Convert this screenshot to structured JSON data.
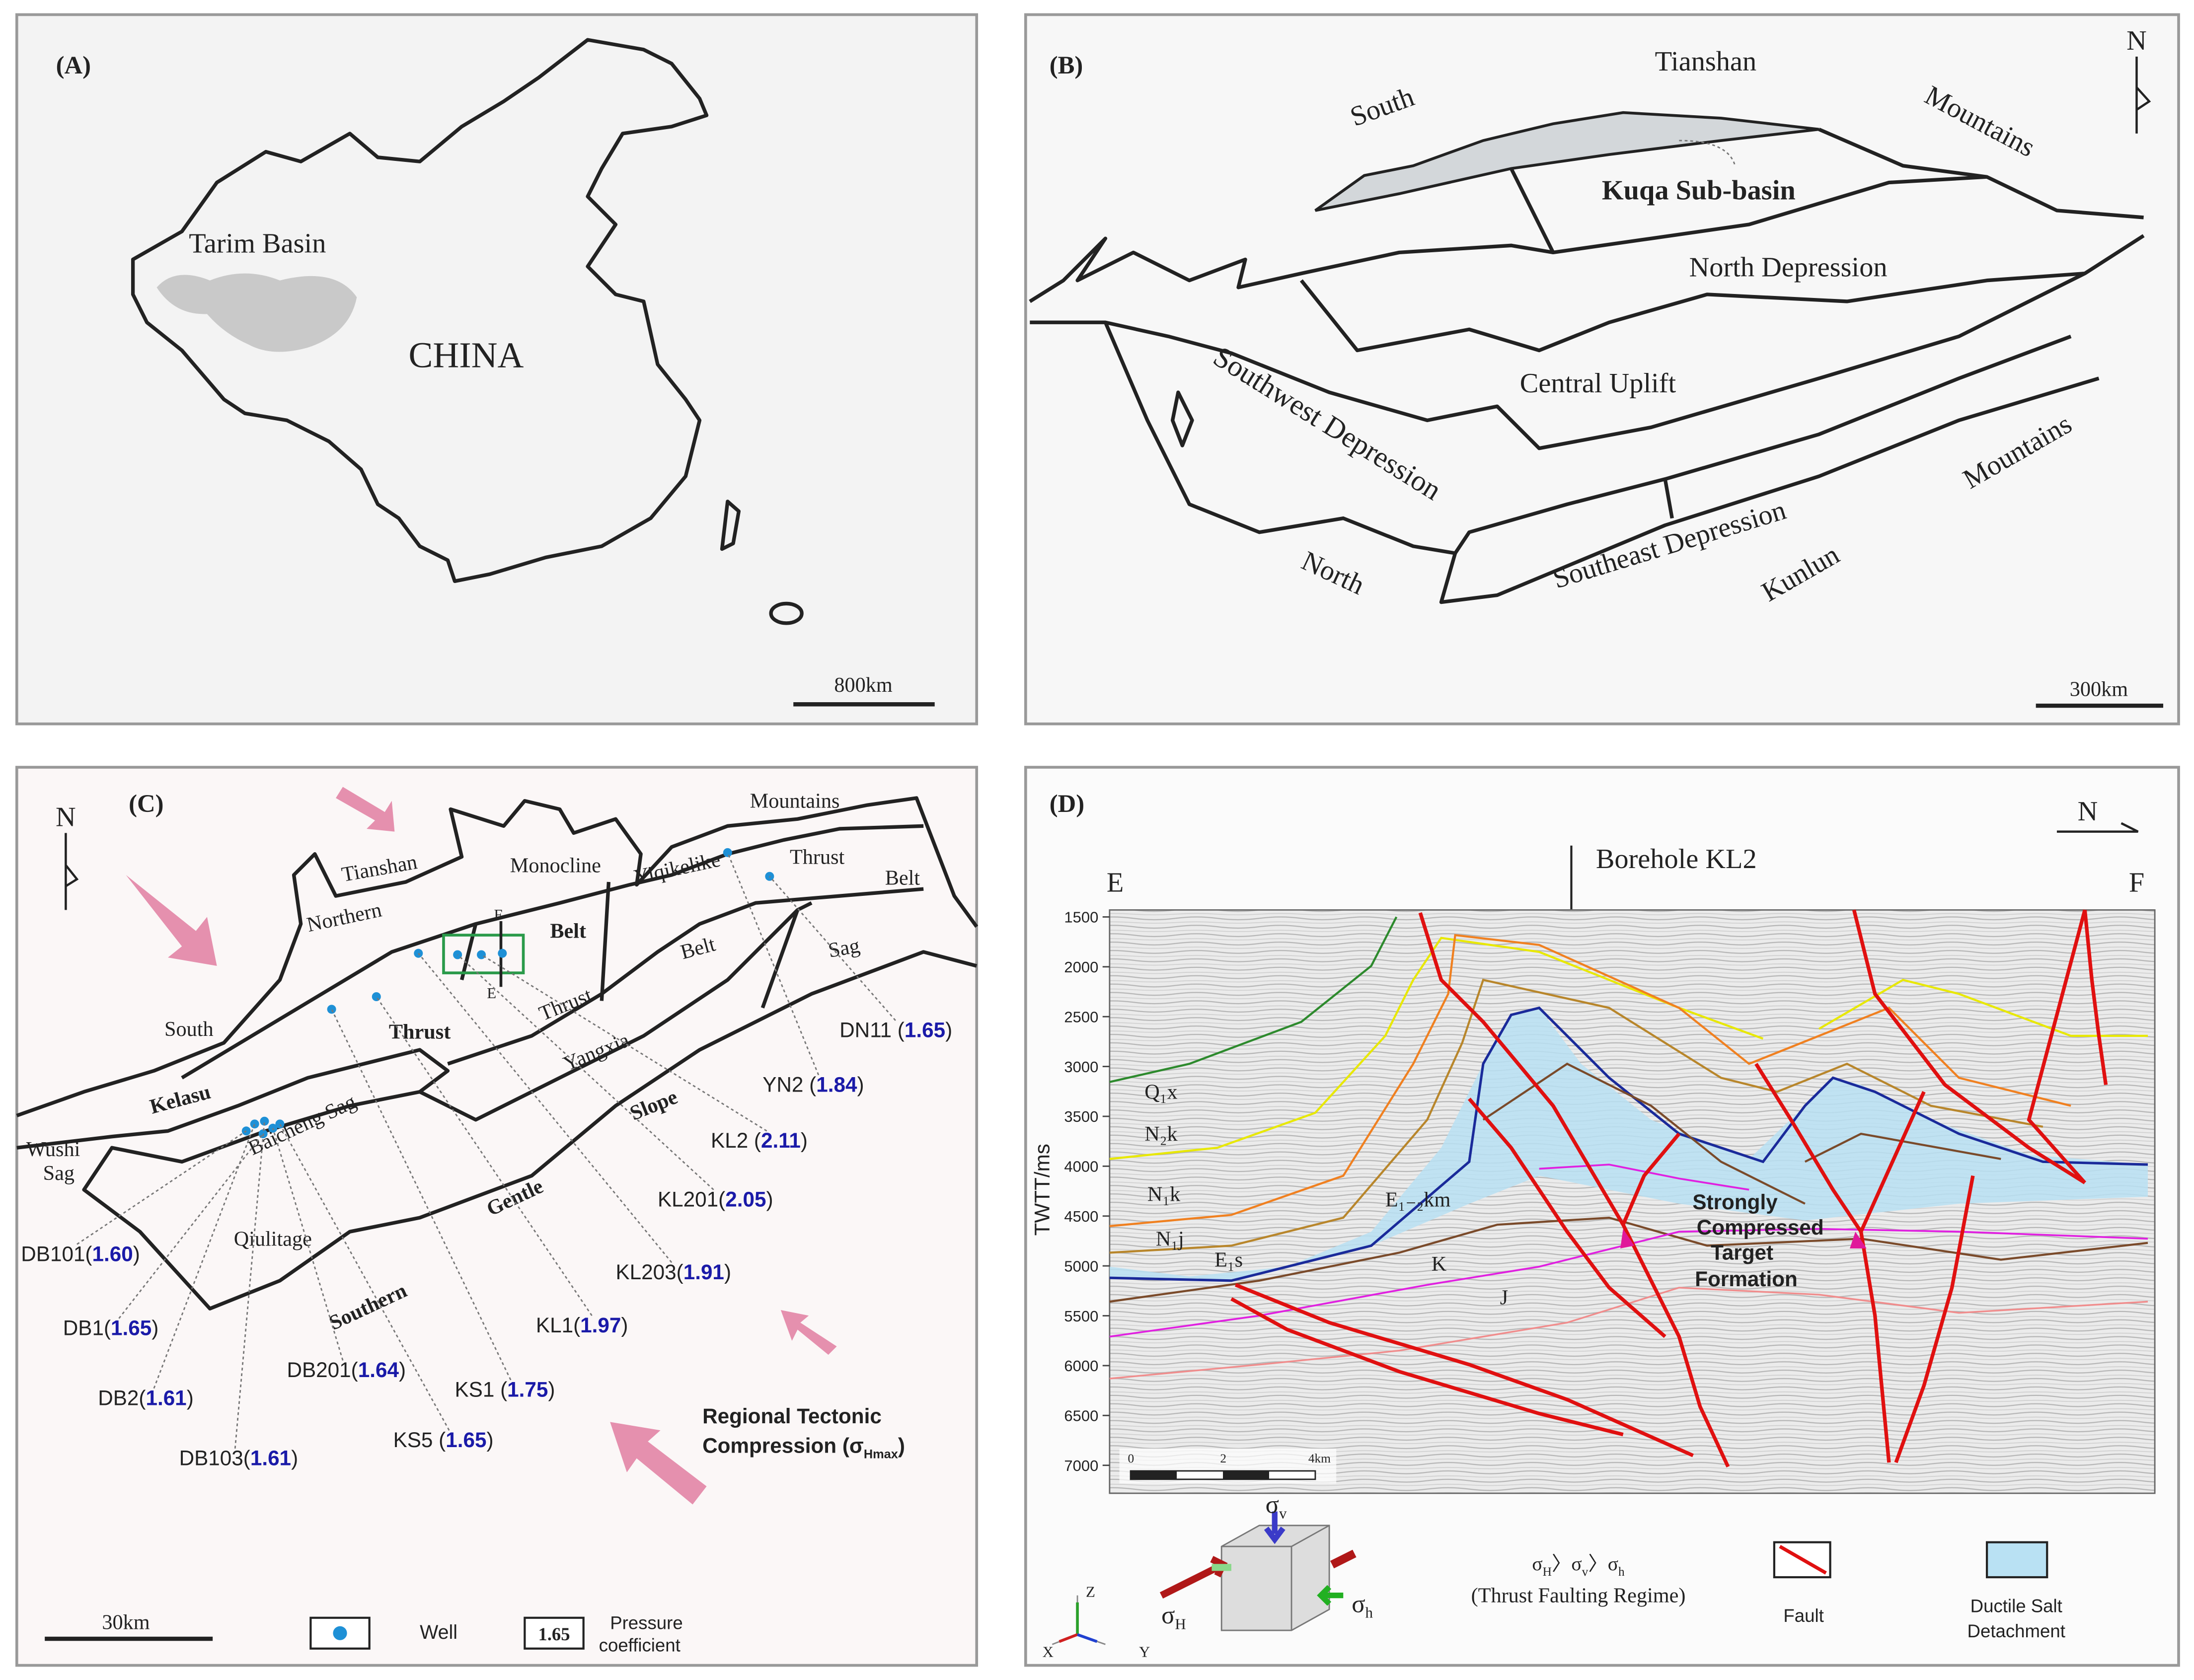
{
  "panel_a": {
    "label": "(A)",
    "region": "Tarim Basin",
    "country": "CHINA",
    "scale": "800km"
  },
  "panel_b": {
    "label": "(B)",
    "north": "N",
    "places": [
      "Tianshan",
      "South",
      "Mountains",
      "Kuqa Sub-basin",
      "North Depression",
      "Central Uplift",
      "Southwest Depression",
      "Mountains",
      "Southeast Depression",
      "Kunlun",
      "North"
    ],
    "scale": "300km"
  },
  "panel_c": {
    "label": "(C)",
    "north": "N",
    "places": [
      "Tianshan",
      "Monocline",
      "Mountains",
      "Thrust",
      "Belt",
      "Northern",
      "Belt",
      "Yiqikelike",
      "Belt",
      "Sag",
      "South",
      "Thrust",
      "Thrust",
      "Yangxia",
      "Slope",
      "Kelasu",
      "Wushi",
      "Sag",
      "Baicheng Sag",
      "Gentle",
      "Qiulitage",
      "Southern"
    ],
    "section_ends": [
      "F",
      "E"
    ],
    "wells": [
      {
        "prefix": "DN11 (",
        "value": "1.65",
        "suffix": ")"
      },
      {
        "prefix": "YN2 (",
        "value": "1.84",
        "suffix": ")"
      },
      {
        "prefix": "KL2 (",
        "value": "2.11",
        "suffix": ")"
      },
      {
        "prefix": "KL201(",
        "value": "2.05",
        "suffix": ")"
      },
      {
        "prefix": "KL203(",
        "value": "1.91",
        "suffix": ")"
      },
      {
        "prefix": "KL1(",
        "value": "1.97",
        "suffix": ")"
      },
      {
        "prefix": "KS1 (",
        "value": "1.75",
        "suffix": ")"
      },
      {
        "prefix": "KS5 (",
        "value": "1.65",
        "suffix": ")"
      },
      {
        "prefix": "DB201(",
        "value": "1.64",
        "suffix": ")"
      },
      {
        "prefix": "DB103(",
        "value": "1.61",
        "suffix": ")"
      },
      {
        "prefix": "DB2(",
        "value": "1.61",
        "suffix": ")"
      },
      {
        "prefix": "DB1(",
        "value": "1.65",
        "suffix": ")"
      },
      {
        "prefix": "DB101(",
        "value": "1.60",
        "suffix": ")"
      }
    ],
    "compression": {
      "line1": "Regional Tectonic",
      "line2": "Compression (σ",
      "sub": "Hmax",
      "close": ")"
    },
    "legend": {
      "scale": "30km",
      "well": "Well",
      "box": "1.65",
      "note": [
        "Pressure",
        "coefficient"
      ]
    }
  },
  "panel_d": {
    "label": "(D)",
    "north": "N",
    "borehole": "Borehole KL2",
    "ends": [
      "E",
      "F"
    ],
    "y_title": "TWTT/ms",
    "yticks": [
      1500,
      2000,
      2500,
      3000,
      3500,
      4000,
      4500,
      5000,
      5500,
      6000,
      6500,
      7000
    ],
    "formations": [
      "Q₁x",
      "N₂k",
      "N₁k",
      "N₁j",
      "E₁s",
      "E₁₋₂km",
      "K",
      "J"
    ],
    "target": [
      "Strongly",
      "Compressed",
      "Target",
      "Formation"
    ],
    "scale": [
      "0",
      "2",
      "4km"
    ],
    "stress": [
      {
        "base": "σ",
        "sub": "v"
      },
      {
        "base": "σ",
        "sub": "H"
      },
      {
        "base": "σ",
        "sub": "h"
      }
    ],
    "regime": {
      "parts": [
        "σ",
        "H",
        "〉σ",
        "v",
        "〉σ",
        "h"
      ],
      "name": "(Thrust Faulting Regime)"
    },
    "axes": [
      "X",
      "Y",
      "Z"
    ],
    "legend": {
      "fault": "Fault",
      "salt": [
        "Ductile Salt",
        "Detachment"
      ]
    }
  }
}
